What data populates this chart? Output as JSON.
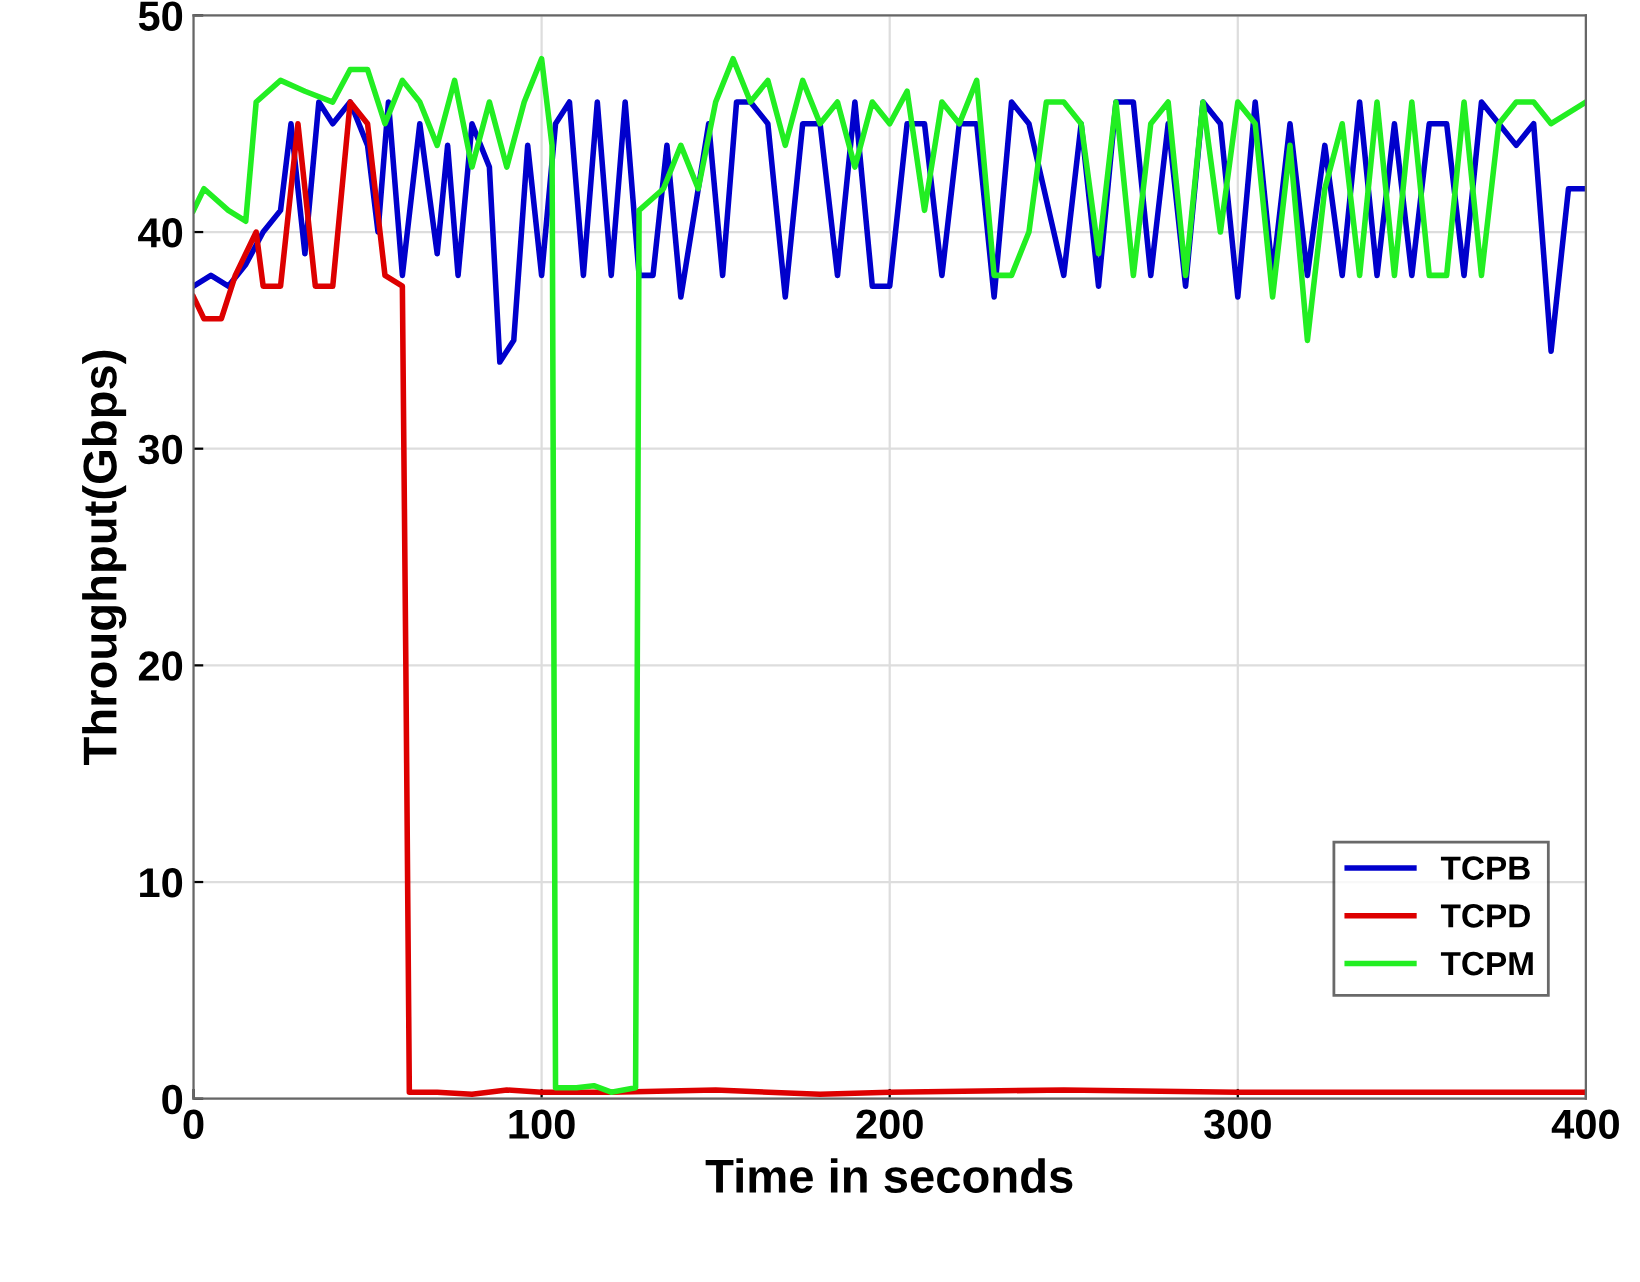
{
  "chart_data": {
    "type": "line",
    "xlabel": "Time in seconds",
    "ylabel": "Throughput(Gbps)",
    "xlim": [
      0,
      400
    ],
    "ylim": [
      0,
      50
    ],
    "xticks": [
      0,
      100,
      200,
      300,
      400
    ],
    "yticks": [
      0,
      10,
      20,
      30,
      40,
      50
    ],
    "grid": true,
    "legend": "bottom right",
    "series": [
      {
        "name": "TCPB",
        "color": "#0000cc",
        "x": [
          0,
          5,
          10,
          15,
          20,
          25,
          28,
          32,
          36,
          40,
          45,
          50,
          53,
          56,
          60,
          65,
          70,
          73,
          76,
          80,
          85,
          88,
          92,
          96,
          100,
          104,
          108,
          112,
          116,
          120,
          124,
          128,
          132,
          136,
          140,
          144,
          148,
          152,
          156,
          160,
          165,
          170,
          175,
          180,
          185,
          190,
          195,
          200,
          205,
          210,
          215,
          220,
          225,
          230,
          235,
          240,
          250,
          255,
          260,
          265,
          270,
          275,
          280,
          285,
          290,
          295,
          300,
          305,
          310,
          315,
          320,
          325,
          330,
          335,
          340,
          345,
          350,
          355,
          360,
          365,
          370,
          375,
          380,
          385,
          390,
          395,
          400
        ],
        "values": [
          37.5,
          38,
          37.5,
          38.5,
          40,
          41,
          45,
          39,
          46,
          45,
          46,
          44,
          40,
          46,
          38,
          45,
          39,
          44,
          38,
          45,
          43,
          34,
          35,
          44,
          38,
          45,
          46,
          38,
          46,
          38,
          46,
          38,
          38,
          44,
          37,
          41,
          45,
          38,
          46,
          46,
          45,
          37,
          45,
          45,
          38,
          46,
          37.5,
          37.5,
          45,
          45,
          38,
          45,
          45,
          37,
          46,
          45,
          38,
          45,
          37.5,
          46,
          46,
          38,
          45,
          37.5,
          46,
          45,
          37,
          46,
          38,
          45,
          38,
          44,
          38,
          46,
          38,
          45,
          38,
          45,
          45,
          38,
          46,
          45,
          44,
          45,
          34.5,
          42,
          42
        ]
      },
      {
        "name": "TCPD",
        "color": "#dd0000",
        "x": [
          0,
          3,
          8,
          12,
          18,
          20,
          25,
          30,
          35,
          40,
          45,
          50,
          55,
          60,
          61,
          62,
          70,
          80,
          90,
          100,
          120,
          150,
          180,
          200,
          250,
          300,
          350,
          400
        ],
        "values": [
          37,
          36,
          36,
          38,
          40,
          37.5,
          37.5,
          45,
          37.5,
          37.5,
          46,
          45,
          38,
          37.5,
          20,
          0.3,
          0.3,
          0.2,
          0.4,
          0.3,
          0.3,
          0.4,
          0.2,
          0.3,
          0.4,
          0.3,
          0.3,
          0.3
        ]
      },
      {
        "name": "TCPM",
        "color": "#22ee22",
        "x": [
          0,
          3,
          10,
          15,
          18,
          25,
          32,
          40,
          45,
          50,
          55,
          60,
          65,
          70,
          75,
          80,
          85,
          90,
          95,
          100,
          103,
          104,
          110,
          115,
          120,
          127,
          128,
          135,
          140,
          145,
          150,
          155,
          160,
          165,
          170,
          175,
          180,
          185,
          190,
          195,
          200,
          205,
          210,
          215,
          220,
          225,
          230,
          235,
          240,
          245,
          250,
          255,
          260,
          265,
          270,
          275,
          280,
          285,
          290,
          295,
          300,
          305,
          310,
          315,
          320,
          325,
          330,
          335,
          340,
          345,
          350,
          355,
          360,
          365,
          370,
          375,
          380,
          385,
          390,
          400
        ],
        "values": [
          41,
          42,
          41,
          40.5,
          46,
          47,
          46.5,
          46,
          47.5,
          47.5,
          45,
          47,
          46,
          44,
          47,
          43,
          46,
          43,
          46,
          48,
          44,
          0.5,
          0.5,
          0.6,
          0.3,
          0.5,
          41,
          42,
          44,
          42,
          46,
          48,
          46,
          47,
          44,
          47,
          45,
          46,
          43,
          46,
          45,
          46.5,
          41,
          46,
          45,
          47,
          38,
          38,
          40,
          46,
          46,
          45,
          39,
          46,
          38,
          45,
          46,
          38,
          46,
          40,
          46,
          45,
          37,
          44,
          35,
          42,
          45,
          38,
          46,
          38,
          46,
          38,
          38,
          46,
          38,
          45,
          46,
          46,
          45,
          46
        ]
      }
    ]
  }
}
